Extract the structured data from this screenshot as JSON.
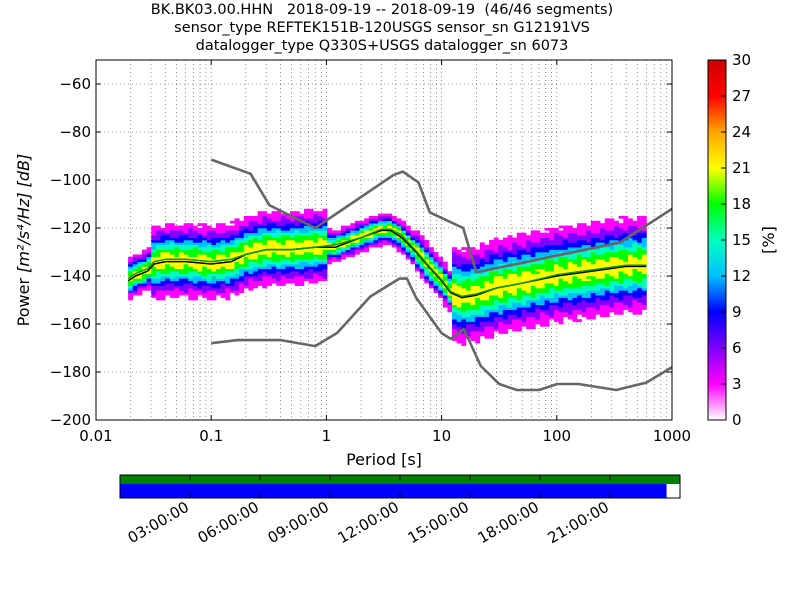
{
  "title_lines": [
    "BK.BK03.00.HHN   2018-09-19 -- 2018-09-19  (46/46 segments)",
    "sensor_type REFTEK151B-120USGS sensor_sn G12191VS",
    "datalogger_type Q330S+USGS datalogger_sn 6073"
  ],
  "chart_data": {
    "type": "heatmap",
    "xlabel": "Period [s]",
    "xscale": "log",
    "xlim": [
      0.01,
      1000
    ],
    "x_ticks": [
      0.01,
      0.1,
      1,
      10,
      100,
      1000
    ],
    "x_tick_labels": [
      "0.01",
      "0.1",
      "1",
      "10",
      "100",
      "1000"
    ],
    "ylabel_prefix": "Power ",
    "ylabel_units": "[m²/s⁴/Hz] [dB]",
    "ylim": [
      -200,
      -50
    ],
    "y_ticks": [
      -200,
      -180,
      -160,
      -140,
      -120,
      -100,
      -80,
      -60
    ],
    "y_tick_labels": [
      "−200",
      "−180",
      "−160",
      "−140",
      "−120",
      "−100",
      "−80",
      "−60"
    ],
    "colorbar": {
      "label": "[%]",
      "range": [
        0,
        30
      ],
      "ticks": [
        0,
        3,
        6,
        9,
        12,
        15,
        18,
        21,
        24,
        27,
        30
      ],
      "colormap": [
        "#ffffff",
        "#ff00ff",
        "#7f00ff",
        "#0000ff",
        "#00bfff",
        "#00ffbf",
        "#00ff00",
        "#ffff00",
        "#ffa500",
        "#ff0000",
        "#cc0000"
      ]
    },
    "grid": true,
    "series": [
      {
        "name": "NHNM",
        "color": "#666666",
        "x": [
          0.1,
          0.22,
          0.32,
          0.8,
          3.8,
          4.6,
          6.3,
          7.9,
          15.4,
          20,
          354.8,
          1000
        ],
        "y": [
          -91.5,
          -97.4,
          -110.5,
          -120,
          -98,
          -96.5,
          -101,
          -113.5,
          -120,
          -138.5,
          -126,
          -112
        ]
      },
      {
        "name": "NLNM",
        "color": "#666666",
        "x": [
          0.1,
          0.17,
          0.4,
          0.8,
          1.24,
          2.4,
          4.3,
          5,
          6,
          10,
          12,
          15.6,
          21.9,
          31.6,
          45,
          70,
          101,
          154,
          328,
          600,
          1000
        ],
        "y": [
          -168,
          -166.7,
          -166.7,
          -169.2,
          -163.7,
          -148.6,
          -141.1,
          -141.1,
          -149,
          -163.8,
          -166.2,
          -162.1,
          -177.5,
          -185,
          -187.5,
          -187.5,
          -185,
          -185,
          -187.5,
          -184.4,
          -178
        ]
      },
      {
        "name": "mode",
        "color": "#000000",
        "x": [
          0.019,
          0.022,
          0.028,
          0.032,
          0.04,
          0.06,
          0.1,
          0.15,
          0.2,
          0.3,
          0.5,
          0.8,
          1.2,
          2,
          3,
          3.6,
          4.5,
          6,
          8,
          10,
          12,
          15,
          20,
          30,
          50,
          100,
          200,
          400,
          600
        ],
        "y": [
          -142,
          -140,
          -138,
          -135,
          -134,
          -134,
          -135,
          -134,
          -131,
          -129,
          -129,
          -128,
          -128,
          -124,
          -121,
          -121,
          -124,
          -130,
          -137,
          -142,
          -147,
          -149,
          -148,
          -145,
          -143,
          -140,
          -138,
          -136,
          -136
        ]
      },
      {
        "name": "mean",
        "color": "#009900",
        "x": [
          0.019,
          0.022,
          0.028,
          0.032,
          0.04,
          0.06,
          0.1,
          0.15,
          0.2,
          0.3,
          0.5,
          0.8,
          1.2,
          2,
          3,
          3.6,
          4.5,
          6,
          8,
          10,
          12,
          15,
          20,
          30,
          50,
          100,
          200,
          400,
          600
        ],
        "y": [
          -141,
          -139,
          -137,
          -134,
          -133,
          -133,
          -134,
          -133,
          -131,
          -129,
          -129,
          -128,
          -127,
          -124,
          -120.5,
          -120.5,
          -123,
          -129.5,
          -136.5,
          -141.5,
          -146.5,
          -148.5,
          -147.5,
          -145,
          -143,
          -139.5,
          -137.5,
          -135.5,
          -135.5
        ]
      }
    ]
  },
  "timeline": {
    "tick_labels": [
      "03:00:00",
      "06:00:00",
      "09:00:00",
      "12:00:00",
      "15:00:00",
      "18:00:00",
      "21:00:00"
    ],
    "ticks_hours": [
      3,
      6,
      9,
      12,
      15,
      18,
      21
    ],
    "range_hours": [
      0,
      24
    ],
    "data_bar_color": "#008000",
    "segment_bar_color": "#0000ff",
    "segment_fill_fraction": 0.976
  }
}
